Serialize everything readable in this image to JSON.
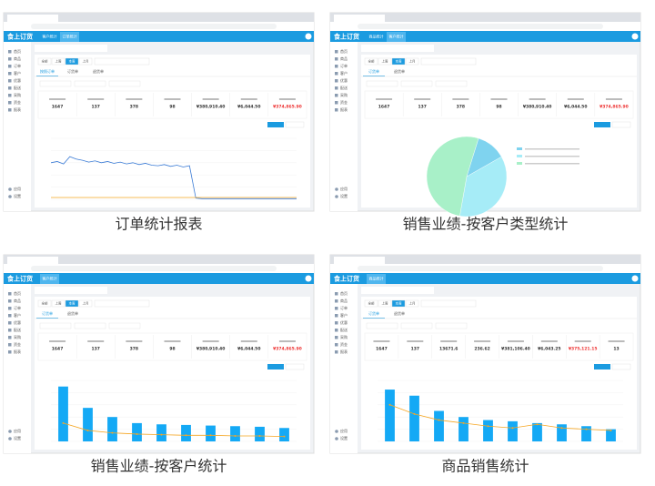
{
  "logo": "食上订货",
  "menu": [
    "首页",
    "商品",
    "订单",
    "客户",
    "优惠",
    "配送",
    "采购",
    "资金",
    "报表"
  ],
  "menu_bottom": [
    "应用",
    "设置"
  ],
  "date_buttons": [
    "全部",
    "上周",
    "本周",
    "上月"
  ],
  "panels": [
    {
      "caption": "订单统计报表",
      "header_tabs": [
        "客户统计",
        "订单统计"
      ],
      "tabs": [
        "按照订单",
        "订货单",
        "退货单"
      ],
      "stats": [
        "1647",
        "137",
        "378",
        "98",
        "¥380,910.40",
        "¥6,044.50",
        "¥374,865.90"
      ],
      "chart": {
        "type": "line",
        "ylim": [
          0,
          100
        ],
        "series": [
          {
            "color": "#3a7bd5",
            "values": [
              60,
              62,
              58,
              70,
              66,
              64,
              61,
              63,
              60,
              62,
              59,
              61,
              58,
              60,
              57,
              59,
              56,
              55,
              57,
              54,
              56,
              53,
              55,
              2,
              1,
              1,
              1,
              1,
              1,
              1,
              1,
              1,
              1,
              1,
              1,
              1,
              1,
              1,
              1,
              1
            ]
          },
          {
            "color": "#f5a623",
            "values": [
              3,
              3,
              3,
              3,
              3,
              3,
              3,
              3,
              3,
              3,
              3,
              3,
              3,
              3,
              3,
              3,
              3,
              3,
              3,
              3,
              3,
              3,
              3,
              3,
              3,
              3,
              3,
              3,
              3,
              3,
              3,
              3,
              3,
              3,
              3,
              3,
              3,
              3,
              3,
              3
            ]
          }
        ]
      }
    },
    {
      "caption": "销售业绩-按客户类型统计",
      "header_tabs": [
        "商品统计",
        "客户统计"
      ],
      "tabs": [
        "订货单",
        "退货单"
      ],
      "stats": [
        "1647",
        "137",
        "378",
        "98",
        "¥380,910.40",
        "¥6,044.50",
        "¥374,865.90"
      ],
      "chart": {
        "type": "pie",
        "values": [
          12,
          36,
          52
        ],
        "colors": [
          "#7fd3ef",
          "#a6ecf7",
          "#a8f0c8"
        ]
      }
    },
    {
      "caption": "销售业绩-按客户统计",
      "header_tabs": [
        "客户统计"
      ],
      "tabs": [
        "订货单",
        "退货单"
      ],
      "stats": [
        "1647",
        "137",
        "378",
        "98",
        "¥380,910.40",
        "¥6,044.50",
        "¥374,865.90"
      ],
      "chart": {
        "type": "bar",
        "ylim": [
          0,
          100
        ],
        "values": [
          90,
          55,
          40,
          30,
          28,
          27,
          26,
          25,
          24,
          22
        ],
        "line": [
          30,
          18,
          14,
          12,
          11,
          10,
          10,
          9,
          9,
          8
        ]
      }
    },
    {
      "caption": "商品销售统计",
      "header_tabs": [
        "商品统计"
      ],
      "tabs": [
        "订货单",
        "退货单"
      ],
      "stats": [
        "1647",
        "137",
        "13671.6",
        "236.62",
        "¥381,106.40",
        "¥6,043.25",
        "¥375,121.15",
        "13"
      ],
      "chart": {
        "type": "bar",
        "ylim": [
          0,
          100
        ],
        "values": [
          85,
          75,
          50,
          40,
          35,
          33,
          30,
          28,
          25,
          20
        ],
        "line": [
          60,
          45,
          35,
          30,
          25,
          22,
          28,
          22,
          20,
          18
        ]
      }
    }
  ]
}
